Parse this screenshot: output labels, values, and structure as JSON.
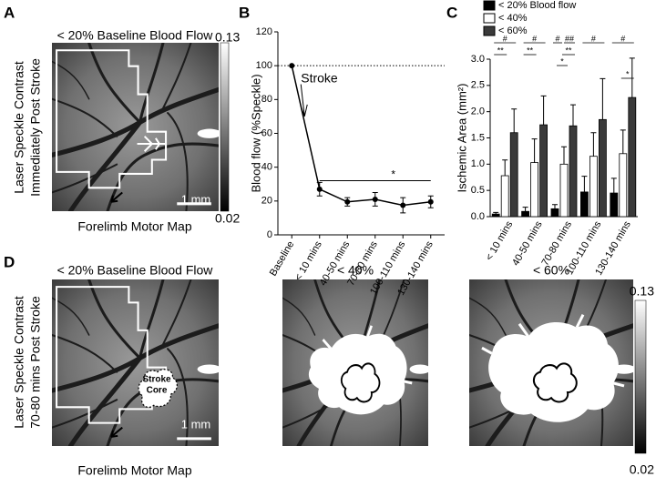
{
  "panel_a": {
    "label": "A",
    "title": "< 20% Baseline Blood Flow",
    "side_label": [
      "Laser Speckle Contrast",
      "Immediately Post Stroke"
    ],
    "colorbar_max": 0.13,
    "colorbar_min": 0.02,
    "scale_bar": "1 mm",
    "caption": "Forelimb Motor Map"
  },
  "chart_data": [
    {
      "type": "line",
      "panel_label": "B",
      "y_label": "Blood flow (%Speckle)",
      "categories": [
        "Baseline",
        "< 10 mins",
        "40-50 mins",
        "70-80 mins",
        "100-110 mins",
        "130-140 mins"
      ],
      "series": [
        {
          "color": "#000000",
          "values": [
            100,
            27,
            19.5,
            21,
            17.5,
            19.5
          ],
          "errors": [
            0,
            4,
            2.5,
            4,
            4.5,
            3.5
          ]
        }
      ],
      "ylim": [
        0,
        120
      ],
      "yticks": [
        0,
        20,
        40,
        60,
        80,
        100,
        120
      ],
      "reference_line": 100,
      "annotation": "Stroke",
      "significance": {
        "text": "*",
        "y": 32
      }
    },
    {
      "type": "bar",
      "panel_label": "C",
      "y_label": "Ischemic  Area (mm²)",
      "categories": [
        "< 10 mins",
        "40-50 mins",
        "70-80 mins",
        "100-110 mins",
        "130-140 mins"
      ],
      "series": [
        {
          "name": "< 20% Blood flow",
          "color": "#000000",
          "values": [
            0.05,
            0.1,
            0.15,
            0.47,
            0.45
          ],
          "errors": [
            0.03,
            0.08,
            0.08,
            0.3,
            0.28
          ]
        },
        {
          "name": "< 40%",
          "color": "#ffffff",
          "values": [
            0.78,
            1.03,
            1.0,
            1.15,
            1.2
          ],
          "errors": [
            0.3,
            0.45,
            0.33,
            0.45,
            0.45
          ]
        },
        {
          "name": "< 60%",
          "color": "#3a3a3a",
          "values": [
            1.6,
            1.75,
            1.73,
            1.85,
            2.27
          ],
          "errors": [
            0.45,
            0.55,
            0.4,
            0.78,
            0.75
          ]
        }
      ],
      "ylim": [
        0,
        3
      ],
      "yticks": [
        {
          "value": 0,
          "label": "0.0"
        },
        0.5,
        {
          "value": 1,
          "label": "1.0"
        },
        1.5,
        {
          "value": 2,
          "label": "2.0"
        },
        2.5,
        {
          "value": 3,
          "label": "3.0"
        }
      ],
      "significance": [
        "#",
        "**",
        "#",
        "**",
        "#",
        "##",
        "**",
        "*",
        "#",
        "#",
        "*"
      ]
    }
  ],
  "panel_d": {
    "label": "D",
    "side_label": [
      "Laser Speckle Contrast",
      "70-80 mins Post Stroke"
    ],
    "titles": [
      "< 20% Baseline Blood Flow",
      "< 40%",
      "< 60%"
    ],
    "core_label": [
      "Stroke",
      "Core"
    ],
    "scale_bar": "1 mm",
    "caption": "Forelimb Motor Map",
    "colorbar_max": 0.13,
    "colorbar_min": 0.02
  }
}
